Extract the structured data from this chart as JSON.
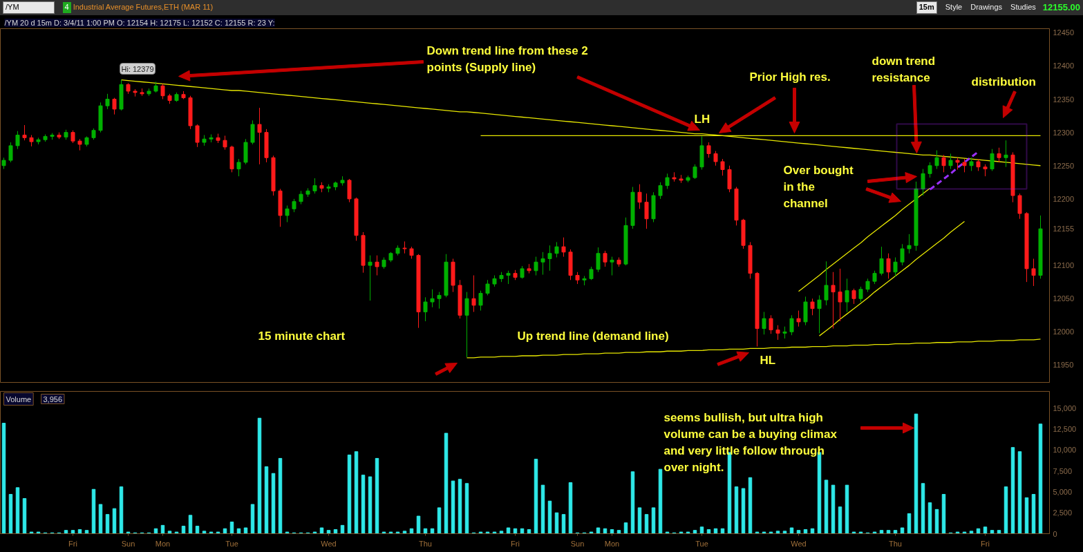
{
  "chart_data": [
    {
      "type": "other",
      "title": "Industrial Average Futures,ETH (MAR 11)",
      "annotations": [
        "/YM",
        "4",
        "15m",
        "Style",
        "Drawings",
        "Studies",
        "12155.00"
      ]
    },
    {
      "type": "candlestick",
      "title": "/YM 20 d 15m D: 3/4/11 1:00 PM O: 12154 H: 12175 L: 12152 C: 12155 R: 23 Y:",
      "categories": [
        null,
        null,
        null,
        null,
        null,
        null,
        null,
        null,
        null,
        null,
        "Fri",
        null,
        null,
        null,
        null,
        null,
        null,
        null,
        "Sun",
        null,
        null,
        null,
        null,
        "Mon",
        null,
        null,
        null,
        null,
        null,
        null,
        null,
        null,
        null,
        "Tue",
        null,
        null,
        null,
        null,
        null,
        null,
        null,
        null,
        null,
        null,
        null,
        null,
        null,
        "Wed",
        null,
        null,
        null,
        null,
        null,
        null,
        null,
        null,
        null,
        null,
        null,
        null,
        null,
        "Thu",
        null,
        null,
        null,
        null,
        null,
        null,
        null,
        null,
        null,
        null,
        null,
        null,
        "Fri",
        null,
        null,
        null,
        null,
        null,
        null,
        null,
        null,
        "Sun",
        null,
        null,
        null,
        null,
        "Mon",
        null,
        null,
        null,
        null,
        null,
        null,
        null,
        null,
        null,
        null,
        null,
        null,
        "Tue",
        null,
        null,
        null,
        null,
        null,
        null,
        null,
        null,
        null,
        null,
        null,
        null,
        null,
        "Wed",
        null,
        null,
        null,
        null,
        null,
        null,
        null,
        null,
        null,
        null,
        null,
        null,
        null,
        "Thu",
        null,
        null,
        null,
        null,
        null,
        null,
        null,
        null,
        null,
        null,
        null,
        null,
        "Fri",
        null,
        null,
        null,
        null,
        null,
        null,
        null,
        null
      ],
      "ohlc": [
        [
          12250,
          12262,
          12245,
          12258
        ],
        [
          12258,
          12285,
          12255,
          12280
        ],
        [
          12280,
          12302,
          12275,
          12296
        ],
        [
          12296,
          12311,
          12288,
          12292
        ],
        [
          12292,
          12296,
          12279,
          12286
        ],
        [
          12286,
          12292,
          12282,
          12289
        ],
        [
          12289,
          12297,
          12286,
          12294
        ],
        [
          12294,
          12299,
          12289,
          12296
        ],
        [
          12296,
          12300,
          12290,
          12293
        ],
        [
          12293,
          12304,
          12289,
          12300
        ],
        [
          12300,
          12303,
          12284,
          12287
        ],
        [
          12287,
          12290,
          12273,
          12282
        ],
        [
          12282,
          12294,
          12279,
          12292
        ],
        [
          12292,
          12306,
          12289,
          12303
        ],
        [
          12303,
          12345,
          12300,
          12340
        ],
        [
          12340,
          12358,
          12335,
          12350
        ],
        [
          12350,
          12352,
          12327,
          12335
        ],
        [
          12335,
          12379,
          12333,
          12372
        ],
        [
          12372,
          12374,
          12358,
          12362
        ],
        [
          12362,
          12365,
          12354,
          12360
        ],
        [
          12360,
          12366,
          12355,
          12358
        ],
        [
          12358,
          12366,
          12355,
          12362
        ],
        [
          12362,
          12376,
          12360,
          12370
        ],
        [
          12370,
          12373,
          12350,
          12355
        ],
        [
          12355,
          12358,
          12343,
          12348
        ],
        [
          12348,
          12360,
          12346,
          12357
        ],
        [
          12357,
          12362,
          12350,
          12352
        ],
        [
          12352,
          12355,
          12305,
          12310
        ],
        [
          12310,
          12312,
          12278,
          12285
        ],
        [
          12285,
          12296,
          12280,
          12290
        ],
        [
          12290,
          12297,
          12285,
          12292
        ],
        [
          12292,
          12298,
          12284,
          12288
        ],
        [
          12288,
          12295,
          12274,
          12278
        ],
        [
          12278,
          12280,
          12240,
          12245
        ],
        [
          12245,
          12260,
          12234,
          12255
        ],
        [
          12255,
          12290,
          12252,
          12285
        ],
        [
          12285,
          12318,
          12282,
          12312
        ],
        [
          12312,
          12337,
          12252,
          12300
        ],
        [
          12300,
          12305,
          12255,
          12262
        ],
        [
          12262,
          12265,
          12205,
          12212
        ],
        [
          12212,
          12215,
          12158,
          12175
        ],
        [
          12175,
          12190,
          12165,
          12185
        ],
        [
          12185,
          12200,
          12180,
          12196
        ],
        [
          12196,
          12212,
          12192,
          12207
        ],
        [
          12207,
          12216,
          12203,
          12212
        ],
        [
          12212,
          12231,
          12208,
          12220
        ],
        [
          12220,
          12225,
          12210,
          12216
        ],
        [
          12216,
          12222,
          12210,
          12218
        ],
        [
          12218,
          12226,
          12213,
          12224
        ],
        [
          12224,
          12234,
          12220,
          12228
        ],
        [
          12228,
          12230,
          12195,
          12200
        ],
        [
          12200,
          12202,
          12137,
          12145
        ],
        [
          12145,
          12150,
          12089,
          12100
        ],
        [
          12100,
          12115,
          12047,
          12105
        ],
        [
          12105,
          12115,
          12085,
          12098
        ],
        [
          12098,
          12112,
          12095,
          12108
        ],
        [
          12108,
          12120,
          12105,
          12118
        ],
        [
          12118,
          12130,
          12115,
          12126
        ],
        [
          12126,
          12136,
          12118,
          12125
        ],
        [
          12125,
          12128,
          12110,
          12115
        ],
        [
          12115,
          12117,
          12006,
          12030
        ],
        [
          12030,
          12052,
          12016,
          12045
        ],
        [
          12045,
          12064,
          12037,
          12050
        ],
        [
          12050,
          12060,
          12035,
          12055
        ],
        [
          12055,
          12117,
          12052,
          12105
        ],
        [
          12105,
          12110,
          12060,
          12070
        ],
        [
          12070,
          12078,
          12020,
          12025
        ],
        [
          12025,
          12060,
          11962,
          12050
        ],
        [
          12050,
          12085,
          12030,
          12040
        ],
        [
          12040,
          12062,
          12032,
          12058
        ],
        [
          12058,
          12078,
          12055,
          12072
        ],
        [
          12072,
          12085,
          12068,
          12080
        ],
        [
          12080,
          12090,
          12075,
          12085
        ],
        [
          12085,
          12092,
          12072,
          12088
        ],
        [
          12088,
          12093,
          12078,
          12082
        ],
        [
          12082,
          12099,
          12080,
          12095
        ],
        [
          12095,
          12102,
          12088,
          12092
        ],
        [
          12092,
          12113,
          12085,
          12105
        ],
        [
          12105,
          12120,
          12086,
          12110
        ],
        [
          12110,
          12130,
          12092,
          12118
        ],
        [
          12118,
          12135,
          12112,
          12128
        ],
        [
          12128,
          12142,
          12113,
          12120
        ],
        [
          12120,
          12124,
          12078,
          12085
        ],
        [
          12085,
          12090,
          12072,
          12078
        ],
        [
          12078,
          12084,
          12070,
          12080
        ],
        [
          12080,
          12098,
          12078,
          12094
        ],
        [
          12094,
          12127,
          12090,
          12118
        ],
        [
          12118,
          12122,
          12098,
          12105
        ],
        [
          12105,
          12113,
          12085,
          12108
        ],
        [
          12108,
          12112,
          12098,
          12102
        ],
        [
          12102,
          12172,
          12100,
          12160
        ],
        [
          12160,
          12218,
          12155,
          12210
        ],
        [
          12210,
          12222,
          12185,
          12195
        ],
        [
          12195,
          12208,
          12155,
          12170
        ],
        [
          12170,
          12210,
          12165,
          12205
        ],
        [
          12205,
          12225,
          12200,
          12220
        ],
        [
          12220,
          12238,
          12215,
          12232
        ],
        [
          12232,
          12240,
          12226,
          12230
        ],
        [
          12230,
          12236,
          12224,
          12228
        ],
        [
          12228,
          12235,
          12225,
          12232
        ],
        [
          12232,
          12252,
          12230,
          12248
        ],
        [
          12248,
          12294,
          12244,
          12280
        ],
        [
          12280,
          12285,
          12262,
          12268
        ],
        [
          12268,
          12272,
          12250,
          12256
        ],
        [
          12256,
          12260,
          12235,
          12244
        ],
        [
          12244,
          12250,
          12210,
          12215
        ],
        [
          12215,
          12218,
          12160,
          12168
        ],
        [
          12168,
          12170,
          12125,
          12130
        ],
        [
          12130,
          12135,
          12080,
          12088
        ],
        [
          12088,
          12090,
          11978,
          12005
        ],
        [
          12005,
          12030,
          11996,
          12020
        ],
        [
          12020,
          12025,
          11997,
          12003
        ],
        [
          12003,
          12010,
          11988,
          11998
        ],
        [
          11998,
          12008,
          11990,
          12000
        ],
        [
          12000,
          12025,
          11995,
          12020
        ],
        [
          12020,
          12032,
          12008,
          12015
        ],
        [
          12015,
          12053,
          12010,
          12045
        ],
        [
          12045,
          12050,
          12025,
          12035
        ],
        [
          12035,
          12055,
          11998,
          12048
        ],
        [
          12048,
          12106,
          12040,
          12070
        ],
        [
          12070,
          12090,
          12005,
          12060
        ],
        [
          12060,
          12095,
          12016,
          12045
        ],
        [
          12045,
          12080,
          12030,
          12062
        ],
        [
          12062,
          12065,
          12042,
          12050
        ],
        [
          12050,
          12068,
          12045,
          12064
        ],
        [
          12064,
          12080,
          12060,
          12076
        ],
        [
          12076,
          12092,
          12072,
          12088
        ],
        [
          12088,
          12128,
          12085,
          12110
        ],
        [
          12110,
          12118,
          12080,
          12090
        ],
        [
          12090,
          12112,
          12083,
          12105
        ],
        [
          12105,
          12132,
          12100,
          12125
        ],
        [
          12125,
          12147,
          12118,
          12130
        ],
        [
          12130,
          12226,
          12122,
          12215
        ],
        [
          12215,
          12245,
          12205,
          12238
        ],
        [
          12238,
          12255,
          12232,
          12250
        ],
        [
          12250,
          12273,
          12245,
          12262
        ],
        [
          12262,
          12266,
          12240,
          12250
        ],
        [
          12250,
          12268,
          12245,
          12258
        ],
        [
          12258,
          12262,
          12244,
          12255
        ],
        [
          12255,
          12260,
          12240,
          12250
        ],
        [
          12250,
          12262,
          12242,
          12256
        ],
        [
          12256,
          12260,
          12242,
          12248
        ],
        [
          12248,
          12252,
          12234,
          12245
        ],
        [
          12245,
          12275,
          12242,
          12268
        ],
        [
          12268,
          12277,
          12255,
          12262
        ],
        [
          12262,
          12288,
          12248,
          12266
        ],
        [
          12266,
          12270,
          12195,
          12205
        ],
        [
          12205,
          12208,
          12170,
          12178
        ],
        [
          12178,
          12180,
          12075,
          12095
        ],
        [
          12095,
          12110,
          12069,
          12085
        ],
        [
          12085,
          12175,
          12080,
          12155
        ]
      ],
      "ylim": [
        11924,
        12456
      ],
      "yticks": [
        11950,
        12000,
        12050,
        12100,
        12155,
        12200,
        12250,
        12300,
        12350,
        12400,
        12450
      ],
      "tick_labels": "y",
      "series": [
        {
          "type": "line",
          "color": "#e8e800",
          "values": [
            null,
            null,
            null,
            null,
            null,
            null,
            null,
            null,
            null,
            null,
            null,
            null,
            null,
            null,
            null,
            null,
            null,
            12379,
            12378,
            12377,
            12376,
            12375,
            12374,
            12373,
            12372,
            12371,
            12370,
            12369,
            12368,
            12367,
            12366,
            12365,
            12364,
            12363,
            12363,
            12362,
            12361,
            12360,
            12359,
            12358,
            12357,
            12356,
            12355,
            12354,
            12353,
            12352,
            12351,
            12350,
            12349,
            12348,
            12347,
            12346,
            12345,
            12344,
            12343,
            12342,
            12341,
            12340,
            12339,
            12338,
            12337,
            12336,
            12335,
            12334,
            12333,
            12332,
            12331,
            12331,
            12330,
            12329,
            12328,
            12327,
            12326,
            12325,
            12324,
            12323,
            12322,
            12321,
            12320,
            12319,
            12318,
            12317,
            12316,
            12315,
            12314,
            12313,
            12312,
            12311,
            12310,
            12309,
            12308,
            12307,
            12306,
            12305,
            12304,
            12303,
            12302,
            12301,
            12300,
            12299,
            12298,
            12298,
            12297,
            12296,
            12295,
            12294,
            12293,
            12292,
            12291,
            12290,
            12289,
            12288,
            12287,
            12286,
            12285,
            12284,
            12283,
            12282,
            12281,
            12280,
            12279,
            12278,
            12277,
            12276,
            12275,
            12274,
            12273,
            12272,
            12271,
            12270,
            12269,
            12268,
            12267,
            12266,
            12266,
            12265,
            12264,
            12263,
            12262,
            12261,
            12260,
            12259,
            12258,
            12257,
            12256,
            12255,
            12254,
            12253,
            12252,
            12251,
            12250
          ]
        },
        {
          "type": "line",
          "color": "#e8e800",
          "values": [
            null,
            null,
            null,
            null,
            null,
            null,
            null,
            null,
            null,
            null,
            null,
            null,
            null,
            null,
            null,
            null,
            null,
            null,
            null,
            null,
            null,
            null,
            null,
            null,
            null,
            null,
            null,
            null,
            null,
            null,
            null,
            null,
            null,
            null,
            null,
            null,
            null,
            null,
            null,
            null,
            null,
            null,
            null,
            null,
            null,
            null,
            null,
            null,
            null,
            null,
            null,
            null,
            null,
            null,
            null,
            null,
            null,
            null,
            null,
            null,
            null,
            null,
            null,
            null,
            null,
            null,
            null,
            null,
            null,
            12295,
            12295,
            12295,
            12295,
            12295,
            12295,
            12295,
            12295,
            12295,
            12295,
            12295,
            12295,
            12295,
            12295,
            12295,
            12295,
            12295,
            12295,
            12295,
            12295,
            12295,
            12295,
            12295,
            12295,
            12295,
            12295,
            12295,
            12295,
            12295,
            12295,
            12295,
            12295,
            12295,
            12295,
            12295,
            12295,
            12295,
            12295,
            12295,
            12295,
            12295,
            12295,
            12295,
            12295,
            12295,
            12295,
            12295,
            12295,
            12295,
            12295,
            12295,
            12295,
            12295,
            12295,
            12295,
            12295,
            12295,
            12295,
            12295,
            12295,
            12295,
            12295,
            12295,
            12295,
            12295,
            12295,
            12295,
            12295,
            12295,
            12295,
            12295,
            12295,
            12295,
            12295,
            12295,
            12295,
            12295,
            12295,
            12295,
            12295,
            12295,
            12295
          ]
        },
        {
          "type": "line",
          "color": "#e8e800",
          "values": [
            null,
            null,
            null,
            null,
            null,
            null,
            null,
            null,
            null,
            null,
            null,
            null,
            null,
            null,
            null,
            null,
            null,
            null,
            null,
            null,
            null,
            null,
            null,
            null,
            null,
            null,
            null,
            null,
            null,
            null,
            null,
            null,
            null,
            null,
            null,
            null,
            null,
            null,
            null,
            null,
            null,
            null,
            null,
            null,
            null,
            null,
            null,
            null,
            null,
            null,
            null,
            null,
            null,
            null,
            null,
            null,
            null,
            null,
            null,
            null,
            null,
            null,
            null,
            null,
            null,
            null,
            null,
            11961,
            11961,
            11962,
            11962,
            11962,
            11963,
            11963,
            11963,
            11964,
            11964,
            11964,
            11965,
            11965,
            11965,
            11966,
            11966,
            11966,
            11967,
            11967,
            11967,
            11968,
            11968,
            11968,
            11969,
            11969,
            11969,
            11970,
            11970,
            11970,
            11971,
            11971,
            11971,
            11972,
            11972,
            11972,
            11973,
            11973,
            11973,
            11974,
            11974,
            11974,
            11975,
            11975,
            11975,
            11976,
            11976,
            11976,
            11977,
            11977,
            11977,
            11978,
            11978,
            11978,
            11979,
            11979,
            11979,
            11980,
            11980,
            11980,
            11981,
            11981,
            11981,
            11982,
            11982,
            11982,
            11983,
            11983,
            11983,
            11984,
            11984,
            11984,
            11985,
            11985,
            11985,
            11986,
            11986,
            11986,
            11987,
            11987,
            11987,
            11988,
            11988,
            11988,
            11989
          ]
        },
        {
          "type": "line",
          "color": "#e8e800",
          "values": [
            null,
            null,
            null,
            null,
            null,
            null,
            null,
            null,
            null,
            null,
            null,
            null,
            null,
            null,
            null,
            null,
            null,
            null,
            null,
            null,
            null,
            null,
            null,
            null,
            null,
            null,
            null,
            null,
            null,
            null,
            null,
            null,
            null,
            null,
            null,
            null,
            null,
            null,
            null,
            null,
            null,
            null,
            null,
            null,
            null,
            null,
            null,
            null,
            null,
            null,
            null,
            null,
            null,
            null,
            null,
            null,
            null,
            null,
            null,
            null,
            null,
            null,
            null,
            null,
            null,
            null,
            null,
            null,
            null,
            null,
            null,
            null,
            null,
            null,
            null,
            null,
            null,
            null,
            null,
            null,
            null,
            null,
            null,
            null,
            null,
            null,
            null,
            null,
            null,
            null,
            null,
            null,
            null,
            null,
            null,
            null,
            null,
            null,
            null,
            null,
            null,
            null,
            null,
            null,
            null,
            null,
            null,
            null,
            null,
            null,
            null,
            null,
            null,
            null,
            null,
            12061,
            12069,
            12077,
            12085,
            12094,
            12102,
            12110,
            12118,
            12126,
            12134,
            12143,
            12151,
            12159,
            12167,
            12175,
            12184,
            12192,
            12200,
            12208,
            12216,
            null,
            null,
            null,
            null,
            null,
            null,
            null,
            null,
            null,
            null,
            null,
            null,
            null,
            null,
            null,
            null
          ]
        },
        {
          "type": "line",
          "color": "#e8e800",
          "values": [
            null,
            null,
            null,
            null,
            null,
            null,
            null,
            null,
            null,
            null,
            null,
            null,
            null,
            null,
            null,
            null,
            null,
            null,
            null,
            null,
            null,
            null,
            null,
            null,
            null,
            null,
            null,
            null,
            null,
            null,
            null,
            null,
            null,
            null,
            null,
            null,
            null,
            null,
            null,
            null,
            null,
            null,
            null,
            null,
            null,
            null,
            null,
            null,
            null,
            null,
            null,
            null,
            null,
            null,
            null,
            null,
            null,
            null,
            null,
            null,
            null,
            null,
            null,
            null,
            null,
            null,
            null,
            null,
            null,
            null,
            null,
            null,
            null,
            null,
            null,
            null,
            null,
            null,
            null,
            null,
            null,
            null,
            null,
            null,
            null,
            null,
            null,
            null,
            null,
            null,
            null,
            null,
            null,
            null,
            null,
            null,
            null,
            null,
            null,
            null,
            null,
            null,
            null,
            null,
            null,
            null,
            null,
            null,
            null,
            null,
            null,
            null,
            null,
            null,
            null,
            null,
            null,
            null,
            11994,
            12002,
            12010,
            12019,
            12027,
            12035,
            12043,
            12051,
            12060,
            12068,
            12076,
            12084,
            12092,
            12100,
            12109,
            12117,
            12125,
            12133,
            12141,
            12150,
            12158,
            12166,
            null,
            null,
            null,
            null,
            null,
            null,
            null,
            null,
            null,
            null,
            null
          ]
        },
        {
          "type": "line",
          "color": "#9b30ff",
          "line_style": "dashed",
          "values": [
            null,
            null,
            null,
            null,
            null,
            null,
            null,
            null,
            null,
            null,
            null,
            null,
            null,
            null,
            null,
            null,
            null,
            null,
            null,
            null,
            null,
            null,
            null,
            null,
            null,
            null,
            null,
            null,
            null,
            null,
            null,
            null,
            null,
            null,
            null,
            null,
            null,
            null,
            null,
            null,
            null,
            null,
            null,
            null,
            null,
            null,
            null,
            null,
            null,
            null,
            null,
            null,
            null,
            null,
            null,
            null,
            null,
            null,
            null,
            null,
            null,
            null,
            null,
            null,
            null,
            null,
            null,
            null,
            null,
            null,
            null,
            null,
            null,
            null,
            null,
            null,
            null,
            null,
            null,
            null,
            null,
            null,
            null,
            null,
            null,
            null,
            null,
            null,
            null,
            null,
            null,
            null,
            null,
            null,
            null,
            null,
            null,
            null,
            null,
            null,
            null,
            null,
            null,
            null,
            null,
            null,
            null,
            null,
            null,
            null,
            null,
            null,
            null,
            null,
            null,
            null,
            null,
            null,
            null,
            null,
            null,
            null,
            null,
            null,
            null,
            null,
            null,
            null,
            null,
            null,
            null,
            null,
            null,
            null,
            12214,
            12222,
            12230,
            12238,
            12247,
            12255,
            12263,
            12271,
            null,
            null,
            null,
            null,
            null,
            null,
            null,
            null,
            null
          ]
        }
      ],
      "annotations": [
        "Down trend line from these 2 points (Supply line)",
        "LH",
        "Prior High res.",
        "down trend resistance",
        "distribution",
        "Over bought in the channel",
        "15 minute chart",
        "Up trend line (demand line)",
        "HL",
        "Hi: 12379"
      ]
    },
    {
      "type": "bar",
      "title": "Volume",
      "color": "#2ee8e8",
      "categories": [
        null,
        null,
        null,
        null,
        null,
        null,
        null,
        null,
        null,
        null,
        "Fri",
        null,
        null,
        null,
        null,
        null,
        null,
        null,
        "Sun",
        null,
        null,
        null,
        null,
        "Mon",
        null,
        null,
        null,
        null,
        null,
        null,
        null,
        null,
        null,
        "Tue",
        null,
        null,
        null,
        null,
        null,
        null,
        null,
        null,
        null,
        null,
        null,
        null,
        null,
        "Wed",
        null,
        null,
        null,
        null,
        null,
        null,
        null,
        null,
        null,
        null,
        null,
        null,
        null,
        "Thu",
        null,
        null,
        null,
        null,
        null,
        null,
        null,
        null,
        null,
        null,
        null,
        null,
        "Fri",
        null,
        null,
        null,
        null,
        null,
        null,
        null,
        null,
        "Sun",
        null,
        null,
        null,
        null,
        "Mon",
        null,
        null,
        null,
        null,
        null,
        null,
        null,
        null,
        null,
        null,
        null,
        null,
        "Tue",
        null,
        null,
        null,
        null,
        null,
        null,
        null,
        null,
        null,
        null,
        null,
        null,
        null,
        "Wed",
        null,
        null,
        null,
        null,
        null,
        null,
        null,
        null,
        null,
        null,
        null,
        null,
        null,
        "Thu",
        null,
        null,
        null,
        null,
        null,
        null,
        null,
        null,
        null,
        null,
        null,
        null,
        "Fri",
        null,
        null,
        null,
        null,
        null,
        null,
        null,
        null
      ],
      "values": [
        13200,
        4700,
        5500,
        4200,
        200,
        200,
        100,
        100,
        100,
        400,
        400,
        500,
        400,
        5300,
        3500,
        2300,
        3000,
        5600,
        200,
        100,
        100,
        100,
        600,
        1000,
        300,
        200,
        900,
        2200,
        900,
        300,
        200,
        200,
        600,
        1400,
        600,
        700,
        3500,
        13800,
        8000,
        7200,
        9000,
        200,
        100,
        100,
        100,
        200,
        700,
        400,
        500,
        1000,
        9400,
        9800,
        7000,
        6800,
        9000,
        200,
        200,
        200,
        300,
        600,
        2100,
        600,
        600,
        3100,
        12000,
        6300,
        6500,
        6000,
        100,
        200,
        200,
        200,
        300,
        700,
        600,
        600,
        500,
        8900,
        5800,
        3900,
        2500,
        2300,
        6100,
        100,
        100,
        200,
        700,
        600,
        500,
        400,
        1300,
        7400,
        3100,
        2300,
        3100,
        7700,
        200,
        100,
        200,
        200,
        400,
        800,
        500,
        600,
        600,
        9700,
        5600,
        5400,
        6700,
        200,
        200,
        200,
        300,
        300,
        700,
        400,
        500,
        600,
        9700,
        6400,
        5800,
        3200,
        5800,
        200,
        200,
        100,
        200,
        400,
        400,
        400,
        700,
        2400,
        14300,
        6000,
        3700,
        2900,
        4700,
        100,
        200,
        200,
        300,
        600,
        800,
        400,
        400,
        5600,
        10300,
        9800,
        4300,
        4700,
        13100
      ],
      "ylim": [
        0,
        17000
      ],
      "yticks": [
        0,
        {
          "value": 2500,
          "label": "2,500"
        },
        {
          "value": 5000,
          "label": "5,000"
        },
        {
          "value": 7500,
          "label": "7,500"
        },
        {
          "value": 10000,
          "label": "10,000"
        },
        {
          "value": 12500,
          "label": "12,500"
        },
        {
          "value": 15000,
          "label": "15,000"
        }
      ],
      "annotations": [
        "3,956",
        "seems bullish, but ultra high volume can be a buying climax and very little follow through over night."
      ]
    }
  ]
}
